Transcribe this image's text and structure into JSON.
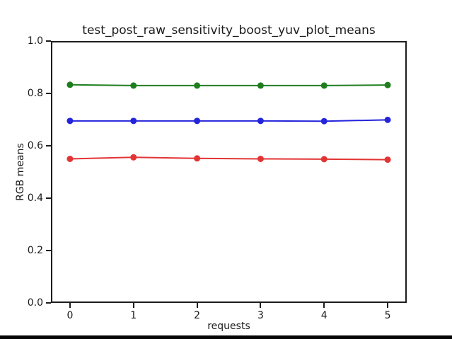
{
  "figure": {
    "background": "#ffffff",
    "frame_color": "#1d1d1d",
    "bottom_edge_color": "#050505"
  },
  "chart_data": {
    "type": "line",
    "title": "test_post_raw_sensitivity_boost_yuv_plot_means",
    "xlabel": "requests",
    "ylabel": "RGB means",
    "x": [
      0,
      1,
      2,
      3,
      4,
      5
    ],
    "series": [
      {
        "name": "red-channel",
        "color": "#e33434",
        "values": [
          0.55,
          0.556,
          0.552,
          0.55,
          0.549,
          0.547
        ]
      },
      {
        "name": "green-channel",
        "color": "#1e7e1e",
        "values": [
          0.833,
          0.83,
          0.83,
          0.83,
          0.83,
          0.832
        ]
      },
      {
        "name": "blue-channel",
        "color": "#2424dd",
        "values": [
          0.695,
          0.695,
          0.695,
          0.695,
          0.694,
          0.699
        ]
      }
    ],
    "xlim": [
      -0.3,
      5.3
    ],
    "ylim": [
      0.0,
      1.0
    ],
    "xticks": [
      0,
      1,
      2,
      3,
      4,
      5
    ],
    "xtick_labels": [
      "0",
      "1",
      "2",
      "3",
      "4",
      "5"
    ],
    "yticks": [
      0.0,
      0.2,
      0.4,
      0.6,
      0.8,
      1.0
    ],
    "ytick_labels": [
      "0.0",
      "0.2",
      "0.4",
      "0.6",
      "0.8",
      "1.0"
    ],
    "grid": false,
    "legend": "none",
    "marker": "circle"
  }
}
